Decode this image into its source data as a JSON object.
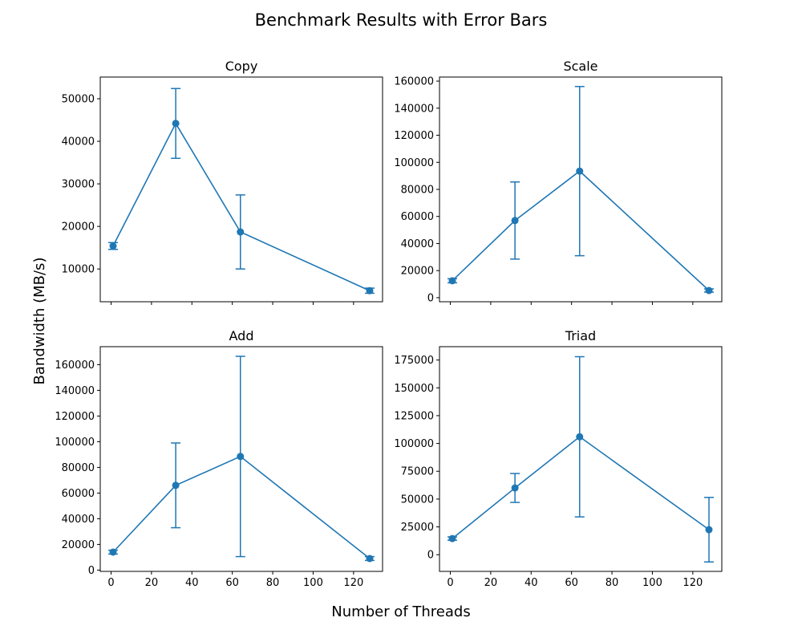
{
  "figure": {
    "title": "Benchmark Results with Error Bars",
    "xlabel": "Number of Threads",
    "ylabel": "Bandwidth (MB/s)",
    "line_color": "#1f77b4"
  },
  "chart_data": [
    {
      "type": "line",
      "title": "Copy",
      "x": [
        1,
        32,
        64,
        128
      ],
      "y": [
        15400,
        44200,
        18700,
        4900
      ],
      "yerr": [
        800,
        8200,
        8700,
        600
      ],
      "xlim": [
        -5.35,
        134.35
      ],
      "xticks": [
        0,
        20,
        40,
        60,
        80,
        100,
        120
      ],
      "show_xticklabels": false,
      "ylim": [
        2300,
        55100
      ],
      "yticks": [
        10000,
        20000,
        30000,
        40000,
        50000
      ],
      "grid": false,
      "error_bars": true
    },
    {
      "type": "line",
      "title": "Scale",
      "x": [
        1,
        32,
        64,
        128
      ],
      "y": [
        12500,
        57000,
        93500,
        5300
      ],
      "yerr": [
        1500,
        28500,
        62500,
        1200
      ],
      "xlim": [
        -5.35,
        134.35
      ],
      "xticks": [
        0,
        20,
        40,
        60,
        80,
        100,
        120
      ],
      "show_xticklabels": false,
      "ylim": [
        -3000,
        163000
      ],
      "yticks": [
        0,
        20000,
        40000,
        60000,
        80000,
        100000,
        120000,
        140000,
        160000
      ],
      "grid": false,
      "error_bars": true
    },
    {
      "type": "line",
      "title": "Add",
      "x": [
        1,
        32,
        64,
        128
      ],
      "y": [
        14000,
        66000,
        88500,
        9000
      ],
      "yerr": [
        1500,
        33000,
        78000,
        1500
      ],
      "xlim": [
        -5.35,
        134.35
      ],
      "xticks": [
        0,
        20,
        40,
        60,
        80,
        100,
        120
      ],
      "show_xticklabels": true,
      "ylim": [
        -1000,
        174000
      ],
      "yticks": [
        0,
        20000,
        40000,
        60000,
        80000,
        100000,
        120000,
        140000,
        160000
      ],
      "grid": false,
      "error_bars": true
    },
    {
      "type": "line",
      "title": "Triad",
      "x": [
        1,
        32,
        64,
        128
      ],
      "y": [
        14500,
        60000,
        106000,
        22500
      ],
      "yerr": [
        1500,
        13000,
        72000,
        29000
      ],
      "xlim": [
        -5.35,
        134.35
      ],
      "xticks": [
        0,
        20,
        40,
        60,
        80,
        100,
        120
      ],
      "show_xticklabels": true,
      "ylim": [
        -15000,
        187000
      ],
      "yticks": [
        0,
        25000,
        50000,
        75000,
        100000,
        125000,
        150000,
        175000
      ],
      "grid": false,
      "error_bars": true
    }
  ]
}
